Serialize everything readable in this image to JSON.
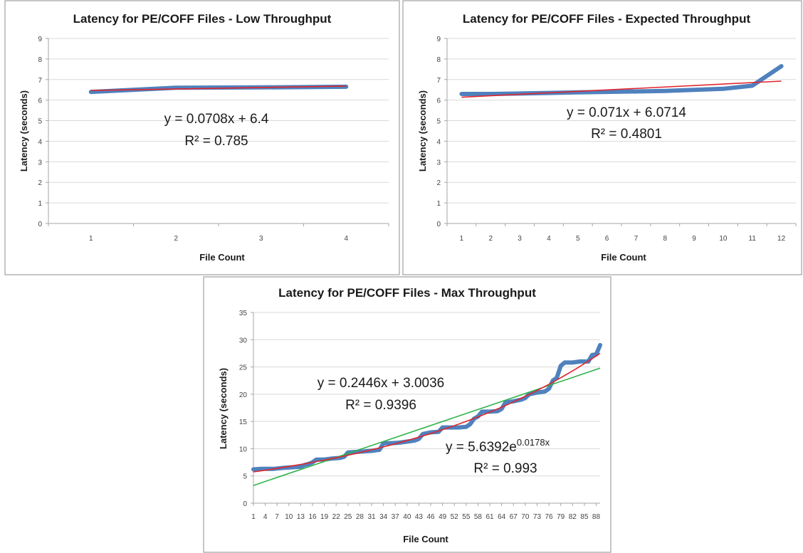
{
  "colors": {
    "series": "#4f81bd",
    "linear_trend": "#e0262e",
    "exp_trend": "#2db34a",
    "grid": "#d9d9d9",
    "axis": "#a6a6a6",
    "frame": "#8c8c8c"
  },
  "chart_data": [
    {
      "type": "line",
      "title": "Latency for PE/COFF Files - Low Throughput",
      "xlabel": "File Count",
      "ylabel": "Latency (seconds)",
      "ylim": [
        0,
        9
      ],
      "yticks": [
        0,
        1,
        2,
        3,
        4,
        5,
        6,
        7,
        8,
        9
      ],
      "categories": [
        "1",
        "2",
        "3",
        "4"
      ],
      "series": [
        {
          "values": [
            6.4,
            6.6,
            6.62,
            6.65
          ]
        }
      ],
      "trendlines": [
        {
          "kind": "linear",
          "slope": 0.0708,
          "intercept": 6.4
        }
      ],
      "annotations": [
        {
          "line1": "y = 0.0708x + 6.4",
          "line2": "R² = 0.785"
        }
      ],
      "grid": true,
      "legend": "none"
    },
    {
      "type": "line",
      "title": "Latency for PE/COFF Files - Expected Throughput",
      "xlabel": "File Count",
      "ylabel": "Latency (seconds)",
      "ylim": [
        0,
        9
      ],
      "yticks": [
        0,
        1,
        2,
        3,
        4,
        5,
        6,
        7,
        8,
        9
      ],
      "categories": [
        "1",
        "2",
        "3",
        "4",
        "5",
        "6",
        "7",
        "8",
        "9",
        "10",
        "11",
        "12"
      ],
      "series": [
        {
          "values": [
            6.3,
            6.3,
            6.32,
            6.35,
            6.38,
            6.4,
            6.42,
            6.45,
            6.5,
            6.55,
            6.7,
            7.65
          ]
        }
      ],
      "trendlines": [
        {
          "kind": "linear",
          "slope": 0.071,
          "intercept": 6.0714
        }
      ],
      "annotations": [
        {
          "line1": "y = 0.071x + 6.0714",
          "line2": "R² = 0.4801"
        }
      ],
      "grid": true,
      "legend": "none"
    },
    {
      "type": "line",
      "title": "Latency for PE/COFF Files - Max Throughput",
      "xlabel": "File Count",
      "ylabel": "Latency (seconds)",
      "ylim": [
        0,
        35
      ],
      "yticks": [
        0,
        5,
        10,
        15,
        20,
        25,
        30,
        35
      ],
      "xmax": 89,
      "xtick_labels": [
        "1",
        "4",
        "7",
        "10",
        "13",
        "16",
        "19",
        "22",
        "25",
        "28",
        "31",
        "34",
        "37",
        "40",
        "43",
        "46",
        "49",
        "52",
        "55",
        "58",
        "61",
        "64",
        "67",
        "70",
        "73",
        "76",
        "79",
        "82",
        "85",
        "88"
      ],
      "series": [
        {
          "points": [
            [
              1,
              6.2
            ],
            [
              3,
              6.3
            ],
            [
              6,
              6.3
            ],
            [
              9,
              6.5
            ],
            [
              11,
              6.6
            ],
            [
              13,
              6.7
            ],
            [
              14,
              7.0
            ],
            [
              15,
              7.2
            ],
            [
              16,
              7.5
            ],
            [
              17,
              8.0
            ],
            [
              19,
              8.0
            ],
            [
              21,
              8.2
            ],
            [
              23,
              8.3
            ],
            [
              24,
              8.5
            ],
            [
              25,
              9.3
            ],
            [
              27,
              9.4
            ],
            [
              29,
              9.5
            ],
            [
              31,
              9.6
            ],
            [
              33,
              9.8
            ],
            [
              34,
              11.0
            ],
            [
              36,
              11.0
            ],
            [
              38,
              11.1
            ],
            [
              40,
              11.3
            ],
            [
              42,
              11.5
            ],
            [
              43,
              11.8
            ],
            [
              44,
              12.7
            ],
            [
              46,
              13.0
            ],
            [
              48,
              13.1
            ],
            [
              49,
              13.9
            ],
            [
              51,
              13.9
            ],
            [
              53,
              13.9
            ],
            [
              55,
              14.0
            ],
            [
              56,
              14.5
            ],
            [
              57,
              15.5
            ],
            [
              58,
              15.9
            ],
            [
              59,
              16.8
            ],
            [
              61,
              16.8
            ],
            [
              63,
              16.9
            ],
            [
              64,
              17.3
            ],
            [
              65,
              18.5
            ],
            [
              67,
              18.7
            ],
            [
              69,
              19.0
            ],
            [
              70,
              19.3
            ],
            [
              71,
              20.0
            ],
            [
              73,
              20.3
            ],
            [
              75,
              20.5
            ],
            [
              76,
              21.0
            ],
            [
              77,
              22.5
            ],
            [
              78,
              23.0
            ],
            [
              79,
              25.2
            ],
            [
              80,
              25.8
            ],
            [
              82,
              25.8
            ],
            [
              84,
              26.0
            ],
            [
              86,
              26.0
            ],
            [
              87,
              27.2
            ],
            [
              88,
              27.3
            ],
            [
              89,
              29.0
            ]
          ]
        }
      ],
      "trendlines": [
        {
          "kind": "linear",
          "slope": 0.2446,
          "intercept": 3.0036
        },
        {
          "kind": "exponential",
          "a": 5.6392,
          "b": 0.0178
        }
      ],
      "annotations": [
        {
          "line1": "y = 0.2446x + 3.0036",
          "line2": "R² = 0.9396"
        },
        {
          "line1": "y = 5.6392e",
          "sup": "0.0178x",
          "line2": "R² = 0.993"
        }
      ],
      "grid": true,
      "legend": "none"
    }
  ]
}
